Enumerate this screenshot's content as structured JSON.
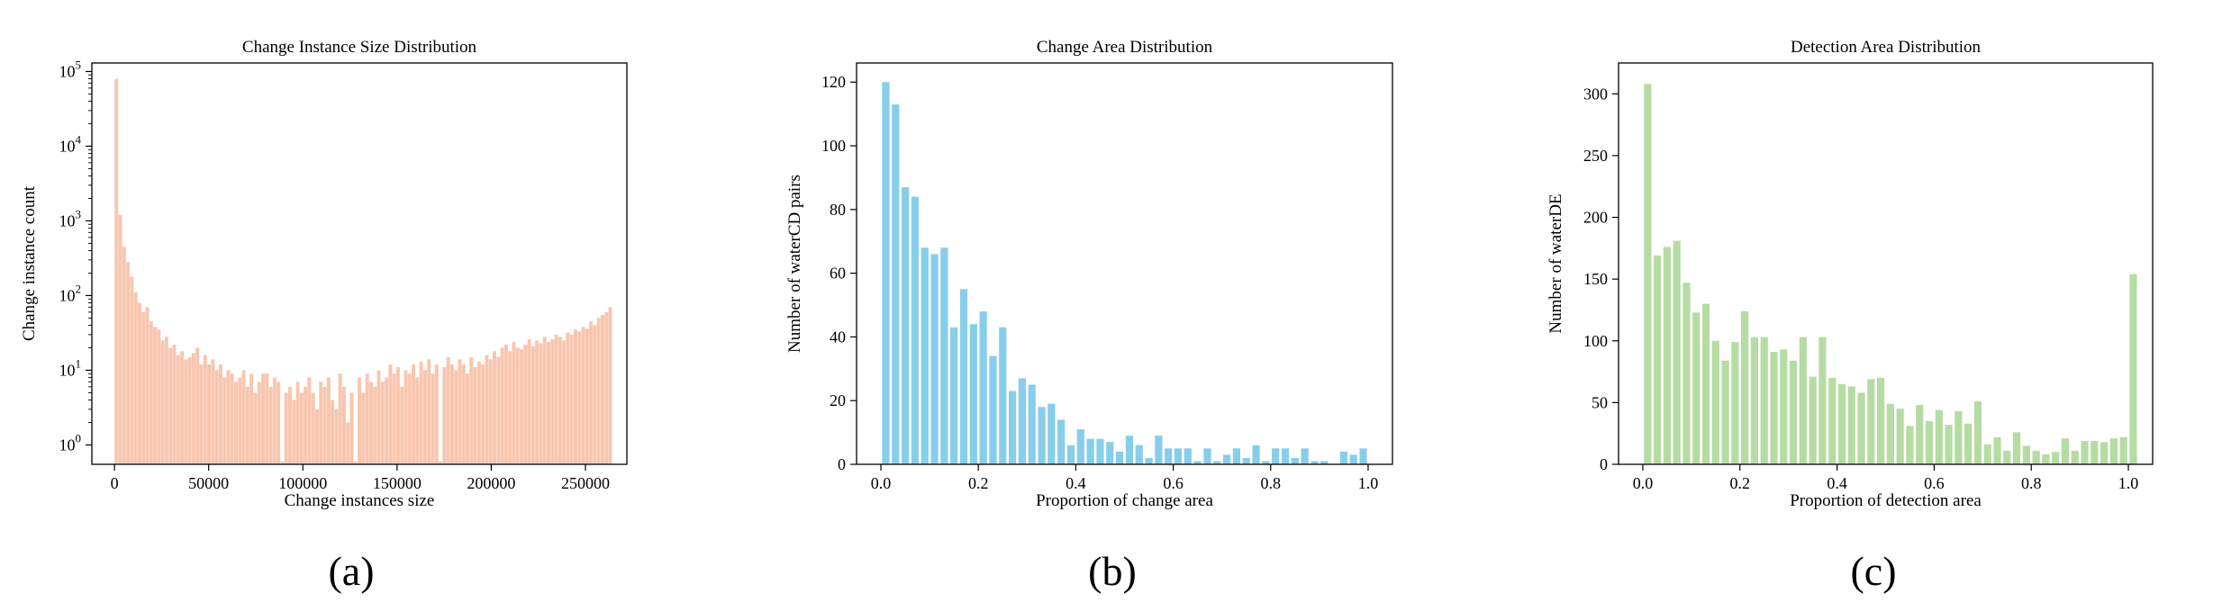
{
  "chart_data": [
    {
      "type": "bar",
      "panel_label": "(a)",
      "title": "Change Instance Size Distribution",
      "xlabel": "Change instances size",
      "ylabel": "Change instance count",
      "yscale": "log",
      "xlim": [
        -12000,
        272000
      ],
      "ylim": [
        0.55,
        130000
      ],
      "xticks": [
        0,
        50000,
        100000,
        150000,
        200000,
        250000
      ],
      "xtick_labels": [
        "0",
        "50000",
        "100000",
        "150000",
        "200000",
        "250000"
      ],
      "yticks": [
        1,
        10,
        100,
        1000,
        10000,
        100000
      ],
      "ytick_base": "10",
      "ytick_exponents": [
        "0",
        "1",
        "2",
        "3",
        "4",
        "5"
      ],
      "color": "#f8c6b0",
      "bin_start": 0,
      "bin_width": 2048,
      "values": [
        80000,
        1200,
        450,
        280,
        180,
        110,
        80,
        60,
        70,
        45,
        38,
        35,
        25,
        28,
        20,
        22,
        16,
        18,
        14,
        15,
        17,
        20,
        12,
        16,
        12,
        14,
        10,
        12,
        8,
        10,
        9,
        7,
        8,
        10,
        6,
        9,
        5,
        7,
        9,
        9,
        6,
        8,
        7,
        0.6,
        5,
        6,
        4,
        7,
        5,
        6,
        8,
        5,
        3,
        7,
        6,
        8,
        4,
        3,
        9,
        6,
        2,
        5,
        0.6,
        8,
        5,
        9,
        7,
        6,
        10,
        7,
        8,
        12,
        9,
        11,
        6,
        10,
        9,
        12,
        8,
        13,
        10,
        14,
        9,
        12,
        0.6,
        11,
        15,
        12,
        10,
        14,
        12,
        9,
        15,
        11,
        13,
        12,
        16,
        14,
        18,
        15,
        20,
        22,
        18,
        24,
        20,
        19,
        22,
        26,
        21,
        25,
        23,
        28,
        24,
        26,
        30,
        28,
        25,
        32,
        30,
        35,
        33,
        38,
        36,
        45,
        40,
        50,
        55,
        60,
        70
      ]
    },
    {
      "type": "bar",
      "panel_label": "(b)",
      "title": "Change Area Distribution",
      "xlabel": "Proportion of change area",
      "ylabel": "Number of waterCD pairs",
      "xlim": [
        -0.05,
        1.05
      ],
      "ylim": [
        0,
        126
      ],
      "xticks": [
        0.0,
        0.2,
        0.4,
        0.6,
        0.8,
        1.0
      ],
      "xtick_labels": [
        "0.0",
        "0.2",
        "0.4",
        "0.6",
        "0.8",
        "1.0"
      ],
      "yticks": [
        0,
        20,
        40,
        60,
        80,
        100,
        120
      ],
      "ytick_labels": [
        "0",
        "20",
        "40",
        "60",
        "80",
        "100",
        "120"
      ],
      "color": "#87ceeb",
      "bin_start": 0,
      "bin_width": 0.02,
      "values": [
        120,
        113,
        87,
        84,
        68,
        66,
        68,
        43,
        55,
        44,
        48,
        34,
        43,
        23,
        27,
        25,
        18,
        19,
        14,
        6,
        11,
        8,
        8,
        7,
        4,
        9,
        6,
        2,
        9,
        5,
        5,
        5,
        1,
        5,
        1,
        3,
        5,
        2,
        6,
        1,
        5,
        5,
        2,
        5,
        1,
        1,
        0,
        4,
        3,
        5
      ]
    },
    {
      "type": "bar",
      "panel_label": "(c)",
      "title": "Detection Area Distribution",
      "xlabel": "Proportion of detection area",
      "ylabel": "Number of waterDE",
      "xlim": [
        -0.05,
        1.05
      ],
      "ylim": [
        0,
        325
      ],
      "xticks": [
        0.0,
        0.2,
        0.4,
        0.6,
        0.8,
        1.0
      ],
      "xtick_labels": [
        "0.0",
        "0.2",
        "0.4",
        "0.6",
        "0.8",
        "1.0"
      ],
      "yticks": [
        0,
        50,
        100,
        150,
        200,
        250,
        300
      ],
      "ytick_labels": [
        "0",
        "50",
        "100",
        "150",
        "200",
        "250",
        "300"
      ],
      "color": "#b5dca2",
      "bin_start": 0,
      "bin_width": 0.02,
      "values": [
        308,
        169,
        176,
        181,
        147,
        123,
        130,
        100,
        84,
        99,
        124,
        103,
        103,
        91,
        93,
        84,
        103,
        71,
        103,
        70,
        65,
        63,
        58,
        69,
        70,
        49,
        45,
        31,
        48,
        35,
        44,
        32,
        43,
        33,
        51,
        16,
        22,
        11,
        26,
        15,
        11,
        8,
        10,
        21,
        11,
        19,
        19,
        18,
        21,
        22,
        154
      ]
    }
  ]
}
